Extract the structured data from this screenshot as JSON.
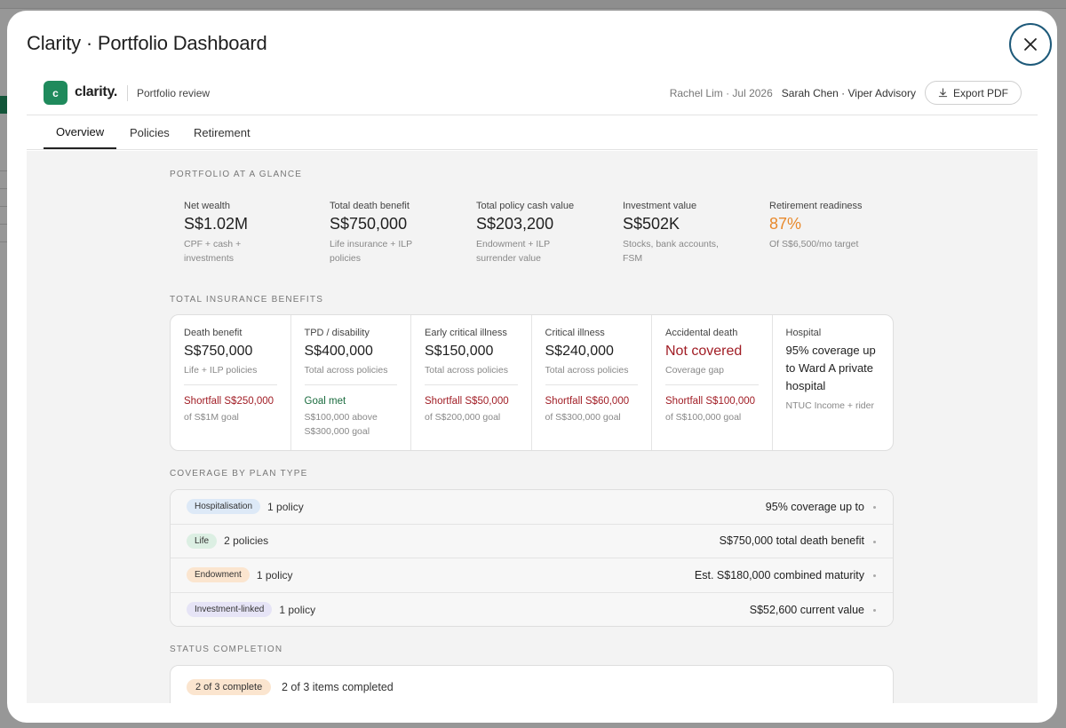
{
  "modal": {
    "title": "Clarity · Portfolio Dashboard"
  },
  "header": {
    "logo_letter": "c",
    "logo_text": "clarity.",
    "subtitle": "Portfolio review",
    "client_meta": "Rachel Lim · Jul 2026",
    "advisor": "Sarah Chen · Viper Advisory",
    "export_label": "Export PDF"
  },
  "tabs": [
    {
      "label": "Overview",
      "active": true
    },
    {
      "label": "Policies",
      "active": false
    },
    {
      "label": "Retirement",
      "active": false
    }
  ],
  "glance": {
    "section_label": "Portfolio at a glance",
    "stats": [
      {
        "label": "Net wealth",
        "value": "S$1.02M",
        "sub": "CPF + cash + investments"
      },
      {
        "label": "Total death benefit",
        "value": "S$750,000",
        "sub": "Life insurance + ILP policies"
      },
      {
        "label": "Total policy cash value",
        "value": "S$203,200",
        "sub": "Endowment + ILP surrender value"
      },
      {
        "label": "Investment value",
        "value": "S$502K",
        "sub": "Stocks, bank accounts, FSM"
      },
      {
        "label": "Retirement readiness",
        "value": "87%",
        "sub": "Of S$6,500/mo target"
      }
    ]
  },
  "benefits": {
    "section_label": "Total insurance benefits",
    "cards": [
      {
        "label": "Death benefit",
        "value": "S$750,000",
        "sub": "Life + ILP policies",
        "status": "Shortfall S$250,000",
        "goal": "of S$1M goal"
      },
      {
        "label": "TPD / disability",
        "value": "S$400,000",
        "sub": "Total across policies",
        "status": "Goal met",
        "goal": "S$100,000 above S$300,000 goal"
      },
      {
        "label": "Early critical illness",
        "value": "S$150,000",
        "sub": "Total across policies",
        "status": "Shortfall S$50,000",
        "goal": "of S$200,000 goal"
      },
      {
        "label": "Critical illness",
        "value": "S$240,000",
        "sub": "Total across policies",
        "status": "Shortfall S$60,000",
        "goal": "of S$300,000 goal"
      },
      {
        "label": "Accidental death",
        "value": "Not covered",
        "sub": "Coverage gap",
        "status": "Shortfall S$100,000",
        "goal": "of S$100,000 goal"
      },
      {
        "label": "Hospital",
        "value": "95% coverage up to Ward A private hospital",
        "sub": "NTUC Income + rider"
      }
    ]
  },
  "coverage": {
    "section_label": "Coverage by plan type",
    "rows": [
      {
        "tag": "Hospitalisation",
        "count": "1 policy",
        "summary": "95% coverage up to"
      },
      {
        "tag": "Life",
        "count": "2 policies",
        "summary": "S$750,000 total death benefit"
      },
      {
        "tag": "Endowment",
        "count": "1 policy",
        "summary": "Est. S$180,000 combined maturity"
      },
      {
        "tag": "Investment-linked",
        "count": "1 policy",
        "summary": "S$52,600 current value"
      }
    ]
  },
  "status": {
    "section_label": "Status completion",
    "pill": "2 of 3 complete",
    "text": "2 of 3 items completed"
  },
  "colors": {
    "brand_green": "#1f8a5c",
    "shortfall_red": "#a11d25",
    "goal_green": "#1a6b3e",
    "readiness_orange": "#e8892c",
    "close_ring": "#1e5a7a"
  },
  "icons": {
    "close": "close-icon",
    "export": "download-icon"
  }
}
